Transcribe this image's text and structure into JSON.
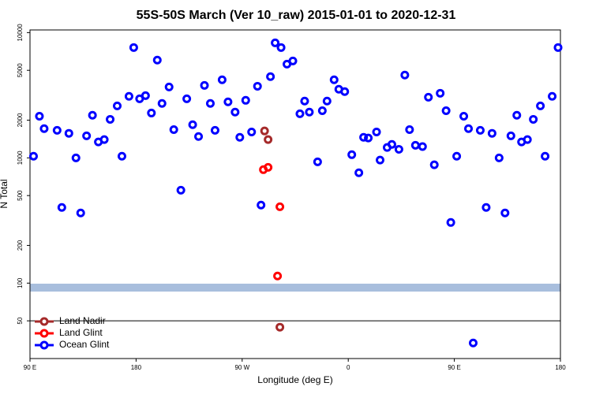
{
  "chart_data": {
    "type": "scatter",
    "title": "55S-50S March (Ver 10_raw)   2015-01-01 to 2020-12-31",
    "x_label": "Longitude (deg E)",
    "y_label": "N Total",
    "log_y": true,
    "xlim": [
      90,
      540
    ],
    "ylim": [
      25,
      10500
    ],
    "xticks": [
      {
        "value": 90,
        "label": "90 E"
      },
      180,
      {
        "value": 270,
        "label": "90 W"
      },
      {
        "value": 360,
        "label": "0"
      },
      {
        "value": 450,
        "label": "90 E"
      },
      {
        "value": 540,
        "label": "180"
      }
    ],
    "yticks": [
      50,
      100,
      200,
      500,
      1000,
      2000,
      5000,
      10000
    ],
    "hline": 50,
    "legend": "lower left",
    "series": [
      {
        "name": "Land Nadir",
        "color": "#a52a2a",
        "x": [
          289,
          292,
          302
        ],
        "values": [
          1640,
          1400,
          44.5
        ]
      },
      {
        "name": "Land Glint",
        "color": "#ff0000",
        "x": [
          288,
          292,
          302,
          300
        ],
        "values": [
          805,
          840,
          407,
          114
        ]
      },
      {
        "name": "Ocean Glint",
        "color": "#0000ff",
        "x": [
          93,
          98,
          102,
          113,
          117,
          123,
          129,
          133,
          138,
          143,
          148,
          153,
          158,
          164,
          168,
          174,
          178,
          183,
          188,
          193,
          198,
          202,
          208,
          212,
          218,
          223,
          228,
          233,
          238,
          243,
          247,
          253,
          258,
          264,
          268,
          273,
          278,
          283,
          286,
          294,
          298,
          303,
          308,
          313,
          319,
          323,
          327,
          334,
          338,
          342,
          348,
          352,
          357,
          363,
          369,
          373,
          377,
          384,
          387,
          393,
          397,
          403,
          408,
          412,
          417,
          423,
          428,
          433,
          438,
          443,
          447,
          452,
          458,
          462,
          466,
          472,
          477,
          482,
          488,
          493,
          498,
          503,
          507,
          512,
          517,
          523,
          527,
          533,
          538
        ],
        "values": [
          1030,
          2150,
          1710,
          1660,
          402,
          1570,
          1000,
          363,
          1500,
          2190,
          1340,
          1400,
          2030,
          2600,
          1030,
          3100,
          7600,
          2960,
          3140,
          2280,
          6030,
          2720,
          3680,
          1680,
          552,
          2960,
          1840,
          1480,
          3790,
          2720,
          1660,
          4200,
          2800,
          2320,
          1460,
          2880,
          1610,
          3730,
          420,
          4450,
          8280,
          7600,
          5600,
          5940,
          2250,
          2840,
          2320,
          930,
          2380,
          2840,
          4200,
          3530,
          3380,
          1060,
          760,
          1460,
          1440,
          1610,
          960,
          1210,
          1280,
          1170,
          4580,
          1680,
          1260,
          1230,
          3050,
          880,
          3280,
          2380,
          305,
          1030,
          2150,
          1710,
          33.3,
          1660,
          402,
          1570,
          1000,
          363,
          1500,
          2190,
          1340,
          1400,
          2030,
          2600,
          1030,
          3100,
          7600
        ]
      }
    ]
  }
}
